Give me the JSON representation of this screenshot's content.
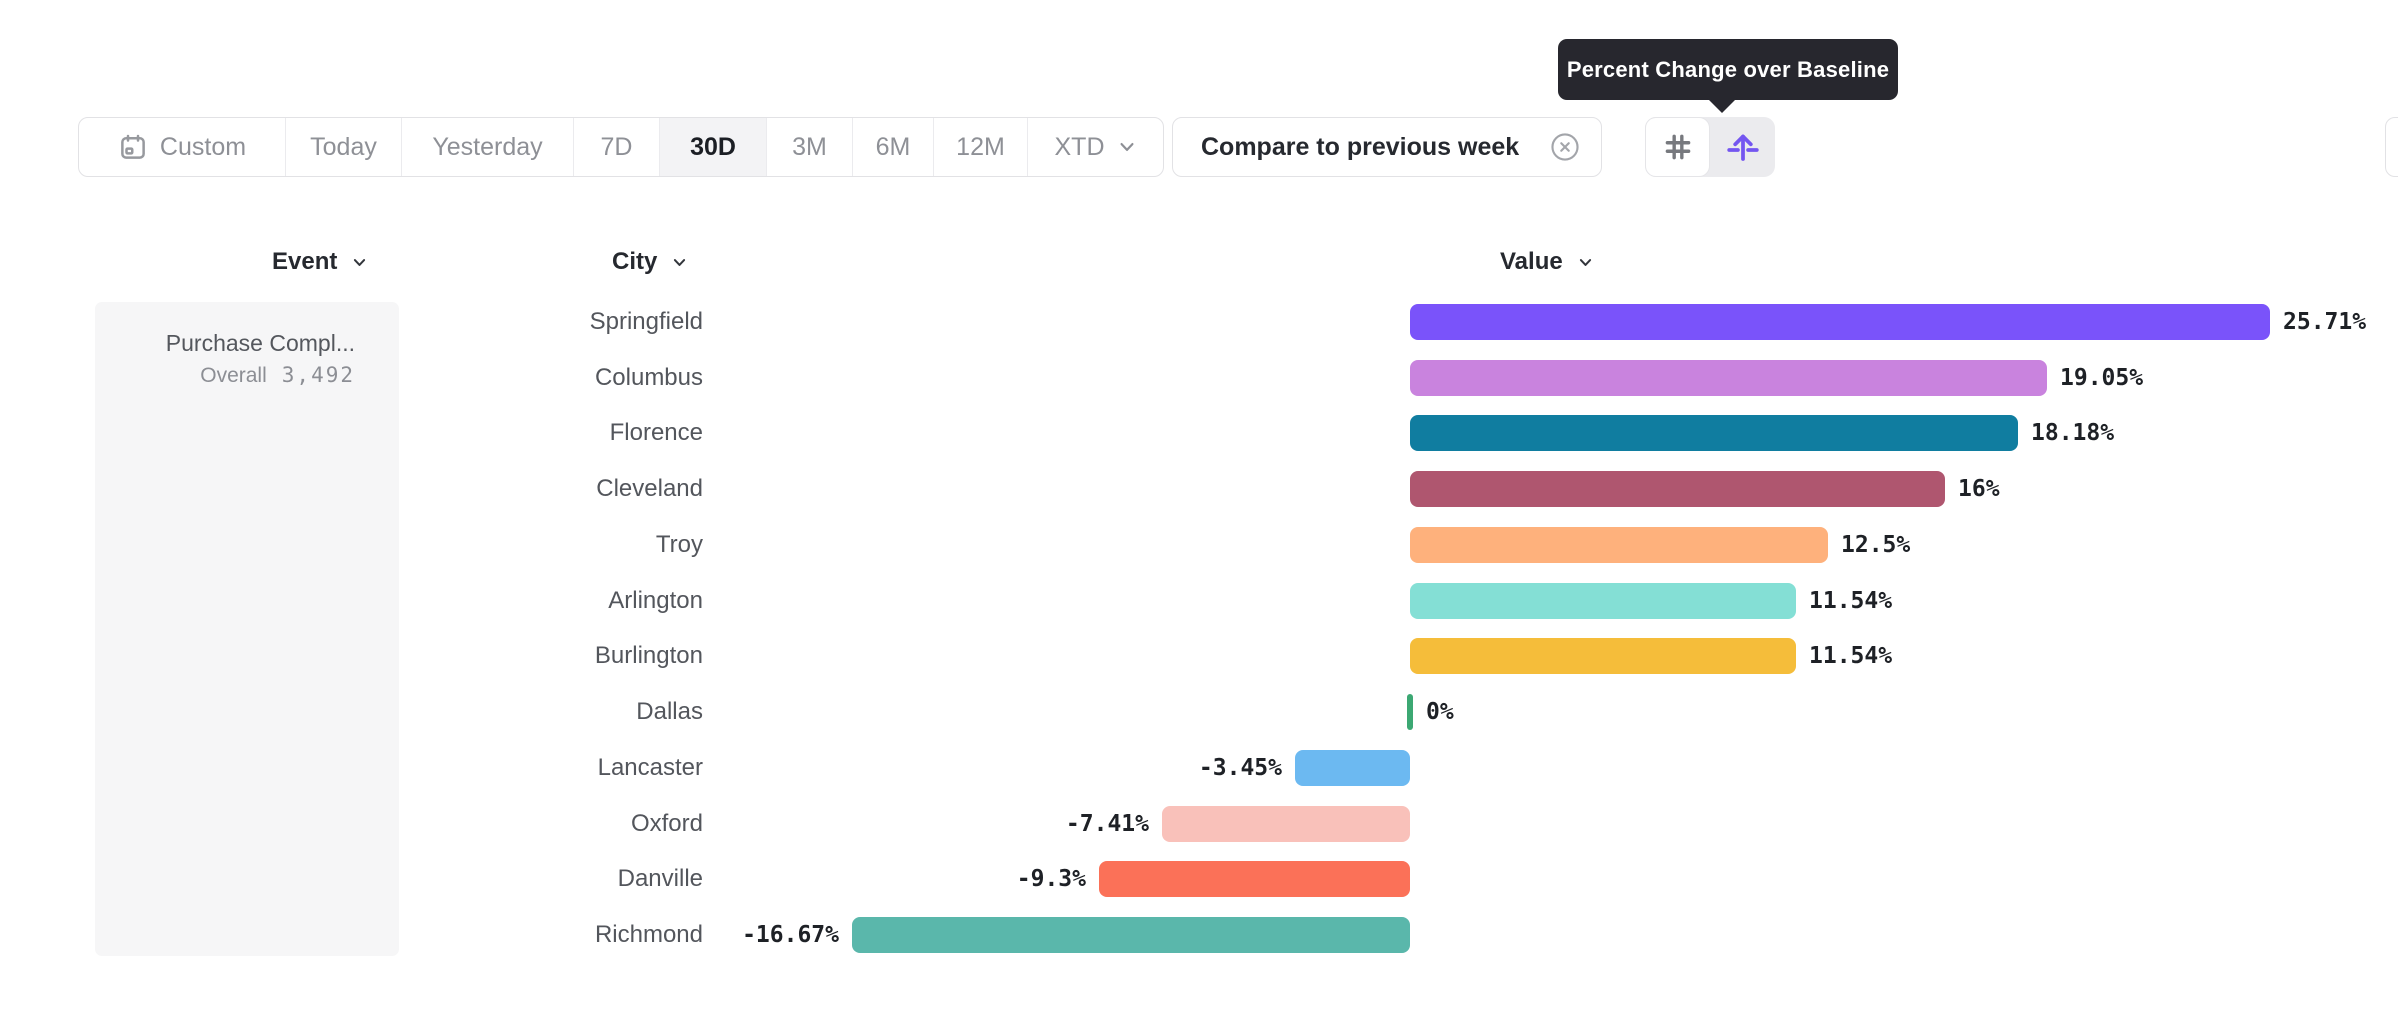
{
  "tooltip": {
    "text": "Percent Change over Baseline"
  },
  "toolbar": {
    "date_ranges": [
      {
        "label": "Custom",
        "icon": "calendar-icon",
        "selected": false
      },
      {
        "label": "Today",
        "selected": false
      },
      {
        "label": "Yesterday",
        "selected": false
      },
      {
        "label": "7D",
        "selected": false
      },
      {
        "label": "30D",
        "selected": true
      },
      {
        "label": "3M",
        "selected": false
      },
      {
        "label": "6M",
        "selected": false
      },
      {
        "label": "12M",
        "selected": false
      },
      {
        "label": "XTD",
        "selected": false,
        "has_chevron": true
      }
    ],
    "compare_chip": {
      "label": "Compare to previous week",
      "close_icon": "circle-x-icon"
    },
    "view_toggle": [
      {
        "icon": "hash-icon",
        "selected": false
      },
      {
        "icon": "percent-change-icon",
        "selected": true
      }
    ]
  },
  "columns": [
    {
      "label": "Event"
    },
    {
      "label": "City"
    },
    {
      "label": "Value"
    }
  ],
  "event_panel": {
    "title": "Purchase Compl...",
    "overall_label": "Overall",
    "overall_value": "3,492"
  },
  "chart_data": {
    "type": "bar",
    "orientation": "horizontal",
    "series_label": "Percent Change over Baseline",
    "categories": [
      "Springfield",
      "Columbus",
      "Florence",
      "Cleveland",
      "Troy",
      "Arlington",
      "Burlington",
      "Dallas",
      "Lancaster",
      "Oxford",
      "Danville",
      "Richmond"
    ],
    "values": [
      25.71,
      19.05,
      18.18,
      16,
      12.5,
      11.54,
      11.54,
      0,
      -3.45,
      -7.41,
      -9.3,
      -16.67
    ],
    "value_labels": [
      "25.71%",
      "19.05%",
      "18.18%",
      "16%",
      "12.5%",
      "11.54%",
      "11.54%",
      "0%",
      "-3.45%",
      "-7.41%",
      "-9.3%",
      "-16.67%"
    ],
    "bar_colors": [
      "#7a53fa",
      "#c983de",
      "#107da0",
      "#af566f",
      "#feb17c",
      "#84dfd5",
      "#f5bd3a",
      "#3ca873",
      "#6cb9f1",
      "#f9c1ba",
      "#fb7158",
      "#5ab7ab"
    ],
    "xlim": [
      -18,
      28
    ],
    "grid": false,
    "legend": false
  },
  "colors": {
    "accent_purple": "#7456f0",
    "tooltip_bg": "#27272e",
    "selected_tab_bg": "#f3f3f5",
    "panel_bg": "#f6f6f7",
    "border": "#e2e2e5",
    "zero_marker_green": "#3ca873"
  }
}
